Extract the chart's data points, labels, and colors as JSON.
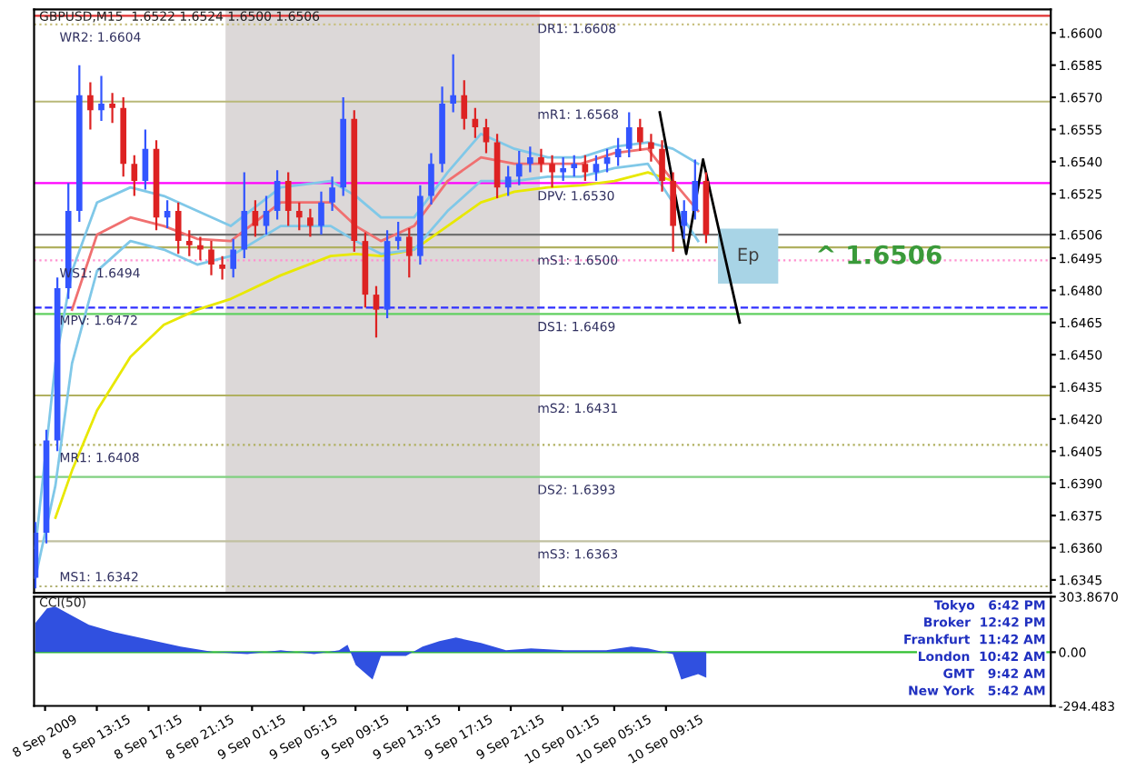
{
  "chart_data": [
    {
      "type": "candlestick",
      "title": "GBPUSD,M15  1.6522 1.6524 1.6500 1.6506",
      "x": [
        "2009-09-08T08:30",
        "2009-09-08T09:21",
        "2009-09-08T10:12",
        "2009-09-08T11:03",
        "2009-09-08T11:54",
        "2009-09-08T12:45",
        "2009-09-08T13:36",
        "2009-09-08T14:27",
        "2009-09-08T15:18",
        "2009-09-08T16:09",
        "2009-09-08T17:00",
        "2009-09-08T17:51",
        "2009-09-08T18:42",
        "2009-09-08T19:33",
        "2009-09-08T20:24",
        "2009-09-08T21:15",
        "2009-09-08T22:06",
        "2009-09-08T22:57",
        "2009-09-08T23:48",
        "2009-09-09T00:39",
        "2009-09-09T01:30",
        "2009-09-09T02:21",
        "2009-09-09T03:12",
        "2009-09-09T04:03",
        "2009-09-09T04:54",
        "2009-09-09T05:45",
        "2009-09-09T06:36",
        "2009-09-09T07:27",
        "2009-09-09T08:18",
        "2009-09-09T09:09",
        "2009-09-09T10:00",
        "2009-09-09T10:51",
        "2009-09-09T11:42",
        "2009-09-09T12:33",
        "2009-09-09T13:24",
        "2009-09-09T14:15",
        "2009-09-09T15:06",
        "2009-09-09T15:57",
        "2009-09-09T16:48",
        "2009-09-09T17:39",
        "2009-09-09T18:30",
        "2009-09-09T19:21",
        "2009-09-09T20:12",
        "2009-09-09T21:03",
        "2009-09-09T21:54",
        "2009-09-09T22:45",
        "2009-09-09T23:36",
        "2009-09-10T00:27",
        "2009-09-10T01:18",
        "2009-09-10T02:09",
        "2009-09-10T03:00",
        "2009-09-10T03:51",
        "2009-09-10T04:42",
        "2009-09-10T05:33",
        "2009-09-10T06:24",
        "2009-09-10T07:15",
        "2009-09-10T08:06",
        "2009-09-10T08:57",
        "2009-09-10T09:48",
        "2009-09-10T10:39",
        "2009-09-10T11:30",
        "2009-09-10T12:21"
      ],
      "ohlc": [
        [
          1.6346,
          1.6372,
          1.6341,
          1.6367
        ],
        [
          1.6367,
          1.6415,
          1.6362,
          1.641
        ],
        [
          1.641,
          1.6486,
          1.6405,
          1.6481
        ],
        [
          1.6481,
          1.653,
          1.6476,
          1.6517
        ],
        [
          1.6517,
          1.6585,
          1.6512,
          1.6571
        ],
        [
          1.6571,
          1.6577,
          1.6555,
          1.6564
        ],
        [
          1.6564,
          1.658,
          1.6559,
          1.6567
        ],
        [
          1.6567,
          1.6572,
          1.6558,
          1.6565
        ],
        [
          1.6565,
          1.657,
          1.6533,
          1.6539
        ],
        [
          1.6539,
          1.6543,
          1.6524,
          1.6531
        ],
        [
          1.6531,
          1.6555,
          1.6527,
          1.6546
        ],
        [
          1.6546,
          1.655,
          1.6508,
          1.6514
        ],
        [
          1.6514,
          1.6522,
          1.6509,
          1.6517
        ],
        [
          1.6517,
          1.6521,
          1.6497,
          1.6503
        ],
        [
          1.6503,
          1.6508,
          1.6496,
          1.6501
        ],
        [
          1.6501,
          1.6505,
          1.6494,
          1.6499
        ],
        [
          1.6499,
          1.6503,
          1.6487,
          1.6492
        ],
        [
          1.6492,
          1.6496,
          1.6485,
          1.649
        ],
        [
          1.649,
          1.6504,
          1.6486,
          1.6499
        ],
        [
          1.6499,
          1.6535,
          1.6495,
          1.6517
        ],
        [
          1.6517,
          1.6522,
          1.6505,
          1.651
        ],
        [
          1.651,
          1.6524,
          1.6506,
          1.6517
        ],
        [
          1.6517,
          1.6536,
          1.6513,
          1.6531
        ],
        [
          1.6531,
          1.6535,
          1.651,
          1.6517
        ],
        [
          1.6517,
          1.6521,
          1.6508,
          1.6514
        ],
        [
          1.6514,
          1.6518,
          1.6505,
          1.651
        ],
        [
          1.651,
          1.6526,
          1.6506,
          1.6521
        ],
        [
          1.6521,
          1.6533,
          1.6517,
          1.6528
        ],
        [
          1.6528,
          1.657,
          1.6524,
          1.656
        ],
        [
          1.656,
          1.6564,
          1.6498,
          1.6503
        ],
        [
          1.6503,
          1.6507,
          1.6472,
          1.6478
        ],
        [
          1.6478,
          1.6482,
          1.6458,
          1.6471
        ],
        [
          1.6471,
          1.6508,
          1.6467,
          1.6503
        ],
        [
          1.6503,
          1.6512,
          1.6499,
          1.6505
        ],
        [
          1.6505,
          1.6509,
          1.6486,
          1.6496
        ],
        [
          1.6496,
          1.6529,
          1.6492,
          1.6524
        ],
        [
          1.6524,
          1.6544,
          1.652,
          1.6539
        ],
        [
          1.6539,
          1.6575,
          1.6535,
          1.6567
        ],
        [
          1.6567,
          1.659,
          1.6563,
          1.6571
        ],
        [
          1.6571,
          1.6578,
          1.6555,
          1.656
        ],
        [
          1.656,
          1.6565,
          1.6551,
          1.6556
        ],
        [
          1.6556,
          1.656,
          1.6544,
          1.6549
        ],
        [
          1.6549,
          1.6553,
          1.6523,
          1.6528
        ],
        [
          1.6528,
          1.6538,
          1.6524,
          1.6533
        ],
        [
          1.6533,
          1.6545,
          1.6529,
          1.6539
        ],
        [
          1.6539,
          1.6547,
          1.6535,
          1.6542
        ],
        [
          1.6542,
          1.6546,
          1.6535,
          1.6539
        ],
        [
          1.6539,
          1.6543,
          1.6528,
          1.6535
        ],
        [
          1.6535,
          1.6542,
          1.6531,
          1.6537
        ],
        [
          1.6537,
          1.6543,
          1.6533,
          1.6539
        ],
        [
          1.6539,
          1.6543,
          1.6531,
          1.6535
        ],
        [
          1.6535,
          1.6543,
          1.6531,
          1.6539
        ],
        [
          1.6539,
          1.6546,
          1.6535,
          1.6542
        ],
        [
          1.6542,
          1.6551,
          1.6538,
          1.6546
        ],
        [
          1.6546,
          1.6563,
          1.6542,
          1.6556
        ],
        [
          1.6556,
          1.656,
          1.6545,
          1.6549
        ],
        [
          1.6549,
          1.6553,
          1.654,
          1.6546
        ],
        [
          1.6546,
          1.655,
          1.6526,
          1.6531
        ],
        [
          1.6531,
          1.6535,
          1.6498,
          1.651
        ],
        [
          1.651,
          1.6522,
          1.6504,
          1.6517
        ],
        [
          1.6517,
          1.6541,
          1.6513,
          1.6531
        ],
        [
          1.6531,
          1.6535,
          1.6502,
          1.6506
        ]
      ],
      "colors": [
        "#3355ff",
        "#3355ff",
        "#3355ff",
        "#3355ff",
        "#3355ff",
        "#dd2222",
        "#3355ff",
        "#dd2222",
        "#dd2222",
        "#dd2222",
        "#3355ff",
        "#dd2222",
        "#3355ff",
        "#dd2222",
        "#dd2222",
        "#dd2222",
        "#dd2222",
        "#dd2222",
        "#3355ff",
        "#3355ff",
        "#dd2222",
        "#3355ff",
        "#3355ff",
        "#dd2222",
        "#dd2222",
        "#dd2222",
        "#3355ff",
        "#3355ff",
        "#3355ff",
        "#dd2222",
        "#dd2222",
        "#dd2222",
        "#3355ff",
        "#3355ff",
        "#dd2222",
        "#3355ff",
        "#3355ff",
        "#3355ff",
        "#3355ff",
        "#dd2222",
        "#dd2222",
        "#dd2222",
        "#dd2222",
        "#3355ff",
        "#3355ff",
        "#3355ff",
        "#dd2222",
        "#dd2222",
        "#3355ff",
        "#3355ff",
        "#dd2222",
        "#3355ff",
        "#3355ff",
        "#3355ff",
        "#3355ff",
        "#dd2222",
        "#dd2222",
        "#dd2222",
        "#dd2222",
        "#3355ff",
        "#3355ff",
        "#dd2222"
      ],
      "series": [
        {
          "type": "line",
          "color": "#e8e800",
          "x": [
            "2009-09-08T10:03",
            "2009-09-08T11:20",
            "2009-09-08T13:16",
            "2009-09-08T15:51",
            "2009-09-08T18:26",
            "2009-09-08T21:01",
            "2009-09-08T23:36",
            "2009-09-09T03:28",
            "2009-09-09T07:20",
            "2009-09-09T09:16",
            "2009-09-09T11:13",
            "2009-09-09T13:47",
            "2009-09-09T16:22",
            "2009-09-09T18:57",
            "2009-09-09T21:32",
            "2009-09-10T00:07",
            "2009-09-10T02:41",
            "2009-09-10T05:16",
            "2009-09-10T07:51",
            "2009-09-10T09:47"
          ],
          "values": [
            1.6374,
            1.6396,
            1.6424,
            1.6449,
            1.6464,
            1.6471,
            1.6476,
            1.6487,
            1.6496,
            1.6497,
            1.6496,
            1.6499,
            1.651,
            1.6521,
            1.6526,
            1.6528,
            1.6529,
            1.6531,
            1.6535,
            1.6531
          ]
        },
        {
          "type": "line",
          "color": "#f07070",
          "x": [
            "2009-09-08T11:20",
            "2009-09-08T13:16",
            "2009-09-08T15:51",
            "2009-09-08T18:26",
            "2009-09-08T21:01",
            "2009-09-08T23:36",
            "2009-09-09T03:28",
            "2009-09-09T07:20",
            "2009-09-09T09:16",
            "2009-09-09T11:13",
            "2009-09-09T13:47",
            "2009-09-09T16:22",
            "2009-09-09T18:57",
            "2009-09-09T21:32",
            "2009-09-10T00:07",
            "2009-09-10T02:41",
            "2009-09-10T05:16",
            "2009-09-10T07:51",
            "2009-09-10T09:47",
            "2009-09-10T11:44"
          ],
          "values": [
            1.6471,
            1.6506,
            1.6514,
            1.651,
            1.6504,
            1.6503,
            1.6521,
            1.6521,
            1.651,
            1.6503,
            1.651,
            1.6531,
            1.6542,
            1.6539,
            1.6539,
            1.6539,
            1.6544,
            1.6546,
            1.6531,
            1.6517
          ]
        },
        {
          "type": "line",
          "color": "#80c8e8",
          "x": [
            "2009-09-08T08:30",
            "2009-09-08T10:03",
            "2009-09-08T11:20",
            "2009-09-08T13:16",
            "2009-09-08T15:51",
            "2009-09-08T18:26",
            "2009-09-08T21:01",
            "2009-09-08T23:36",
            "2009-09-09T03:28",
            "2009-09-09T07:20",
            "2009-09-09T09:16",
            "2009-09-09T11:13",
            "2009-09-09T13:47",
            "2009-09-09T16:22",
            "2009-09-09T18:57",
            "2009-09-09T21:32",
            "2009-09-10T00:07",
            "2009-09-10T02:41",
            "2009-09-10T05:16",
            "2009-09-10T07:51",
            "2009-09-10T09:47",
            "2009-09-10T11:44"
          ],
          "values": [
            1.636,
            1.6446,
            1.6489,
            1.6521,
            1.6528,
            1.6524,
            1.6517,
            1.651,
            1.6528,
            1.6531,
            1.6524,
            1.6514,
            1.6514,
            1.6535,
            1.6553,
            1.6546,
            1.6542,
            1.6542,
            1.6547,
            1.6549,
            1.6546,
            1.6539
          ]
        },
        {
          "type": "line",
          "color": "#80c8e8",
          "x": [
            "2009-09-08T08:30",
            "2009-09-08T10:03",
            "2009-09-08T11:20",
            "2009-09-08T13:16",
            "2009-09-08T15:51",
            "2009-09-08T18:26",
            "2009-09-08T21:01",
            "2009-09-08T23:36",
            "2009-09-09T03:28",
            "2009-09-09T07:20",
            "2009-09-09T09:16",
            "2009-09-09T11:13",
            "2009-09-09T13:47",
            "2009-09-09T16:22",
            "2009-09-09T18:57",
            "2009-09-09T21:32",
            "2009-09-10T00:07",
            "2009-09-10T02:41",
            "2009-09-10T05:16",
            "2009-09-10T07:51",
            "2009-09-10T09:47",
            "2009-09-10T11:44"
          ],
          "values": [
            1.6346,
            1.6389,
            1.6446,
            1.6489,
            1.6503,
            1.6499,
            1.6492,
            1.6496,
            1.651,
            1.651,
            1.6503,
            1.6497,
            1.6499,
            1.6517,
            1.6531,
            1.6531,
            1.6533,
            1.6533,
            1.6537,
            1.6539,
            1.6521,
            1.6503
          ]
        },
        {
          "type": "line",
          "color": "#000000",
          "x": [
            "2009-09-10T08:46",
            "2009-09-10T10:49",
            "2009-09-10T12:07",
            "2009-09-10T14:57"
          ],
          "values": [
            1.6563,
            1.6497,
            1.6541,
            1.6465
          ]
        }
      ],
      "xlim": [
        "2009-09-08T08:24",
        "2009-09-11T15:00"
      ],
      "ylim": [
        1.6339,
        1.6611
      ],
      "yticks": [
        {
          "value": 1.6345,
          "label": "1.6345"
        },
        {
          "value": 1.636,
          "label": "1.6360"
        },
        {
          "value": 1.6375,
          "label": "1.6375"
        },
        {
          "value": 1.639,
          "label": "1.6390"
        },
        {
          "value": 1.6405,
          "label": "1.6405"
        },
        {
          "value": 1.642,
          "label": "1.6420"
        },
        {
          "value": 1.6435,
          "label": "1.6435"
        },
        {
          "value": 1.645,
          "label": "1.6450"
        },
        {
          "value": 1.6465,
          "label": "1.6465"
        },
        {
          "value": 1.648,
          "label": "1.6480"
        },
        {
          "value": 1.6495,
          "label": "1.6495"
        },
        {
          "value": 1.6506,
          "label": "1.6506"
        },
        {
          "value": 1.6525,
          "label": "1.6525"
        },
        {
          "value": 1.654,
          "label": "1.6540"
        },
        {
          "value": 1.6555,
          "label": "1.6555"
        },
        {
          "value": 1.657,
          "label": "1.6570"
        },
        {
          "value": 1.6585,
          "label": "1.6585"
        },
        {
          "value": 1.66,
          "label": "1.6600"
        }
      ],
      "tick_labels": "y",
      "bands": [
        {
          "axis": "x",
          "from": "2009-09-08T23:12",
          "to": "2009-09-09T23:30",
          "color": "#dcd8d8"
        }
      ],
      "ref_lines": [
        {
          "axis": "y",
          "value": 1.6608,
          "label": "DR1: 1.6608",
          "color": "#e03030",
          "line_style": "solid"
        },
        {
          "axis": "y",
          "value": 1.6604,
          "label": "WR2: 1.6604",
          "color": "#c8c080",
          "line_style": "dotted"
        },
        {
          "axis": "y",
          "value": 1.6568,
          "label": "mR1: 1.6568",
          "color": "#b8b878",
          "line_style": "solid"
        },
        {
          "axis": "y",
          "value": 1.653,
          "label": "DPV: 1.6530",
          "color": "#ff00ff",
          "line_style": "solid"
        },
        {
          "axis": "y",
          "value": 1.6506,
          "color": "#707070",
          "line_style": "solid"
        },
        {
          "axis": "y",
          "value": 1.65,
          "label": "mS1: 1.6500",
          "color": "#b0b060",
          "line_style": "solid"
        },
        {
          "axis": "y",
          "value": 1.6494,
          "label": "WS1: 1.6494",
          "color": "#ff90d0",
          "line_style": "dotted"
        },
        {
          "axis": "y",
          "value": 1.6472,
          "label": "MPV: 1.6472",
          "color": "#3030ff",
          "line_style": "dashed"
        },
        {
          "axis": "y",
          "value": 1.6469,
          "label": "DS1: 1.6469",
          "color": "#60d060",
          "line_style": "solid"
        },
        {
          "axis": "y",
          "value": 1.6431,
          "label": "mS2: 1.6431",
          "color": "#b0b060",
          "line_style": "solid"
        },
        {
          "axis": "y",
          "value": 1.6408,
          "label": "MR1: 1.6408",
          "color": "#b0b060",
          "line_style": "dotted"
        },
        {
          "axis": "y",
          "value": 1.6393,
          "label": "DS2: 1.6393",
          "color": "#80d080",
          "line_style": "solid"
        },
        {
          "axis": "y",
          "value": 1.6363,
          "label": "mS3: 1.6363",
          "color": "#c0c0a0",
          "line_style": "solid"
        },
        {
          "axis": "y",
          "value": 1.6342,
          "label": "MS1: 1.6342",
          "color": "#b0b070",
          "line_style": "dotted"
        }
      ],
      "annotations": [
        {
          "text": "Ep",
          "x": "2009-09-10T15:36",
          "y": 1.6496
        },
        {
          "text": "^ 1.6506",
          "x": "2009-09-10T20:48",
          "y": 1.6506
        }
      ]
    },
    {
      "type": "area",
      "title": "CCI(50)",
      "series": [
        {
          "color": "#3050e0",
          "x": [
            "2009-09-08T08:30",
            "2009-09-08T09:24",
            "2009-09-08T10:03",
            "2009-09-08T11:20",
            "2009-09-08T12:38",
            "2009-09-08T14:34",
            "2009-09-08T17:09",
            "2009-09-08T19:44",
            "2009-09-08T22:19",
            "2009-09-09T00:53",
            "2009-09-09T03:28",
            "2009-09-09T06:03",
            "2009-09-09T07:59",
            "2009-09-09T08:38",
            "2009-09-09T09:16",
            "2009-09-09T10:34",
            "2009-09-09T11:13",
            "2009-09-09T13:09",
            "2009-09-09T14:26",
            "2009-09-09T15:44",
            "2009-09-09T17:01",
            "2009-09-09T18:57",
            "2009-09-09T20:53",
            "2009-09-09T22:49",
            "2009-09-10T01:24",
            "2009-09-10T04:38",
            "2009-09-10T06:34",
            "2009-09-10T07:51",
            "2009-09-10T09:47",
            "2009-09-10T10:26",
            "2009-09-10T11:44",
            "2009-09-10T12:22"
          ],
          "values": [
            160,
            240,
            250,
            200,
            150,
            110,
            70,
            30,
            0,
            -10,
            10,
            -10,
            10,
            40,
            -70,
            -150,
            -20,
            -20,
            30,
            60,
            80,
            50,
            10,
            20,
            10,
            10,
            30,
            20,
            -10,
            -150,
            -120,
            -140
          ]
        }
      ],
      "xlim": [
        "2009-09-08T08:24",
        "2009-09-11T15:00"
      ],
      "ylim": [
        -294.483,
        303.867
      ],
      "xticks": [
        {
          "value": "2009-09-08T09:15",
          "label": "8 Sep 2009"
        },
        {
          "value": "2009-09-08T13:15",
          "label": "8 Sep 13:15"
        },
        {
          "value": "2009-09-08T17:15",
          "label": "8 Sep 17:15"
        },
        {
          "value": "2009-09-08T21:15",
          "label": "8 Sep 21:15"
        },
        {
          "value": "2009-09-09T01:15",
          "label": "9 Sep 01:15"
        },
        {
          "value": "2009-09-09T05:15",
          "label": "9 Sep 05:15"
        },
        {
          "value": "2009-09-09T09:15",
          "label": "9 Sep 09:15"
        },
        {
          "value": "2009-09-09T13:15",
          "label": "9 Sep 13:15"
        },
        {
          "value": "2009-09-09T17:15",
          "label": "9 Sep 17:15"
        },
        {
          "value": "2009-09-09T21:15",
          "label": "9 Sep 21:15"
        },
        {
          "value": "2009-09-10T01:15",
          "label": "10 Sep 01:15"
        },
        {
          "value": "2009-09-10T05:15",
          "label": "10 Sep 05:15"
        },
        {
          "value": "2009-09-10T09:15",
          "label": "10 Sep 09:15"
        }
      ],
      "yticks": [
        {
          "value": 303.867,
          "label": "303.8670"
        },
        {
          "value": 0,
          "label": "0.00"
        },
        {
          "value": -294.483,
          "label": "-294.483"
        }
      ],
      "ref_lines": [
        {
          "axis": "y",
          "value": 0,
          "color": "#30c030",
          "line_style": "solid"
        }
      ],
      "annotations": [
        "Tokyo   6:42 PM",
        "Broker  12:42 PM",
        "Frankfurt  11:42 AM",
        "London  10:42 AM",
        "GMT   9:42 AM",
        "New York   5:42 AM"
      ]
    }
  ]
}
